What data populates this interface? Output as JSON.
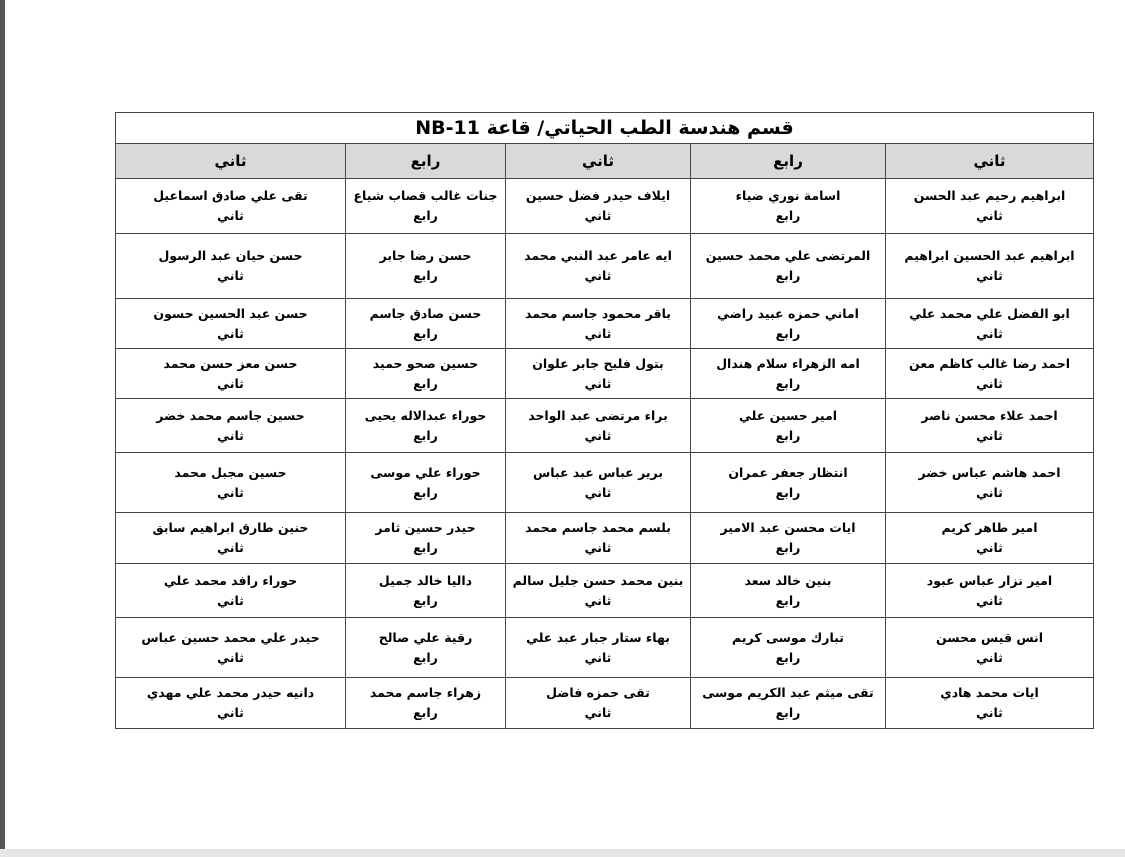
{
  "title": "قسم هندسة الطب الحياتي/ قاعة NB-11",
  "headers": [
    "ثاني",
    "رابع",
    "ثاني",
    "رابع",
    "ثاني"
  ],
  "rows": [
    [
      {
        "name": "ابراهيم رحيم عبد الحسن",
        "level": "ثاني"
      },
      {
        "name": "اسامة نوري ضياء",
        "level": "رابع"
      },
      {
        "name": "ايلاف حيدر فضل حسين",
        "level": "ثاني"
      },
      {
        "name": "جنات غالب قصاب شياع",
        "level": "رابع"
      },
      {
        "name": "تقى علي صادق اسماعيل",
        "level": "ثاني"
      }
    ],
    [
      {
        "name": "ابراهيم عبد الحسين ابراهيم",
        "level": "ثاني"
      },
      {
        "name": "المرتضى علي محمد حسين",
        "level": "رابع"
      },
      {
        "name": "ايه عامر عبد النبي محمد",
        "level": "ثاني"
      },
      {
        "name": "حسن رضا جابر",
        "level": "رابع"
      },
      {
        "name": "حسن حيان عبد الرسول",
        "level": "ثاني"
      }
    ],
    [
      {
        "name": "ابو الفضل علي محمد علي",
        "level": "ثاني"
      },
      {
        "name": "اماني حمزه عبيد راضي",
        "level": "رابع"
      },
      {
        "name": "باقر محمود جاسم محمد",
        "level": "ثاني"
      },
      {
        "name": "حسن صادق جاسم",
        "level": "رابع"
      },
      {
        "name": "حسن عبد الحسين حسون",
        "level": "ثاني"
      }
    ],
    [
      {
        "name": "احمد رضا غالب كاظم معن",
        "level": "ثاني"
      },
      {
        "name": "امه الزهراء سلام هندال",
        "level": "رابع"
      },
      {
        "name": "بتول فليح جابر علوان",
        "level": "ثاني"
      },
      {
        "name": "حسين صحو حميد",
        "level": "رابع"
      },
      {
        "name": "حسن معز حسن محمد",
        "level": "ثاني"
      }
    ],
    [
      {
        "name": "احمد علاء محسن ناصر",
        "level": "ثاني"
      },
      {
        "name": "امير حسين علي",
        "level": "رابع"
      },
      {
        "name": "براء مرتضى عبد الواحد",
        "level": "ثاني"
      },
      {
        "name": "حوراء عبدالاله يحيى",
        "level": "رابع"
      },
      {
        "name": "حسين جاسم محمد خضر",
        "level": "ثاني"
      }
    ],
    [
      {
        "name": "احمد هاشم عباس خضر",
        "level": "ثاني"
      },
      {
        "name": "انتظار جعفر عمران",
        "level": "رابع"
      },
      {
        "name": "برير عباس عبد عباس",
        "level": "ثاني"
      },
      {
        "name": "حوراء علي موسى",
        "level": "رابع"
      },
      {
        "name": "حسين مجبل محمد",
        "level": "ثاني"
      }
    ],
    [
      {
        "name": "امير طاهر كريم",
        "level": "ثاني"
      },
      {
        "name": "ايات محسن عبد الامير",
        "level": "رابع"
      },
      {
        "name": "بلسم محمد جاسم محمد",
        "level": "ثاني"
      },
      {
        "name": "حيدر حسين ثامر",
        "level": "رابع"
      },
      {
        "name": "حنين طارق ابراهيم سابق",
        "level": "ثاني"
      }
    ],
    [
      {
        "name": "امير نزار عباس عبود",
        "level": "ثاني"
      },
      {
        "name": "بنين خالد سعد",
        "level": "رابع"
      },
      {
        "name": "بنين محمد حسن جليل سالم",
        "level": "ثاني"
      },
      {
        "name": "داليا خالد جميل",
        "level": "رابع"
      },
      {
        "name": "حوراء رافد محمد علي",
        "level": "ثاني"
      }
    ],
    [
      {
        "name": "انس قيس محسن",
        "level": "ثاني"
      },
      {
        "name": "تبارك موسى كريم",
        "level": "رابع"
      },
      {
        "name": "بهاء ستار جبار عبد علي",
        "level": "ثاني"
      },
      {
        "name": "رقية علي صالح",
        "level": "رابع"
      },
      {
        "name": "حيدر علي محمد حسين عباس",
        "level": "ثاني"
      }
    ],
    [
      {
        "name": "ايات محمد هادي",
        "level": "ثاني"
      },
      {
        "name": "تقى ميثم عبد الكريم موسى",
        "level": "رابع"
      },
      {
        "name": "تقى حمزه فاضل",
        "level": "ثاني"
      },
      {
        "name": "زهراء جاسم محمد",
        "level": "رابع"
      },
      {
        "name": "دانيه حيدر محمد علي مهدي",
        "level": "ثاني"
      }
    ]
  ]
}
